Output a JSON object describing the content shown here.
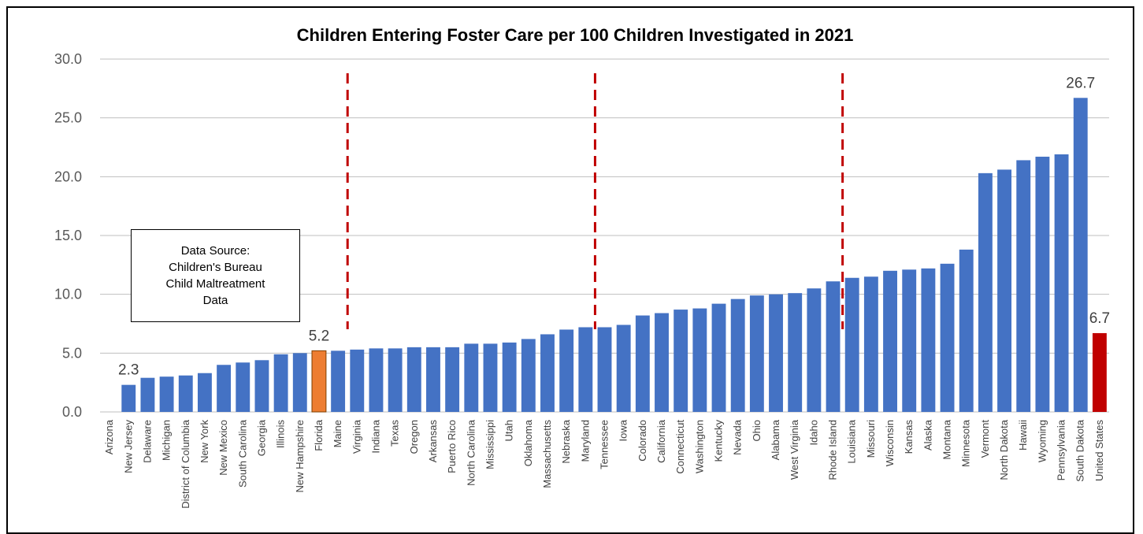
{
  "chart_data": {
    "type": "bar",
    "title": "Children Entering Foster Care per 100 Children Investigated in 2021",
    "xlabel": "",
    "ylabel": "",
    "ylim": [
      0,
      30
    ],
    "yticks": [
      "0.0",
      "5.0",
      "10.0",
      "15.0",
      "20.0",
      "25.0",
      "30.0"
    ],
    "grid": true,
    "categories": [
      "Arizona",
      "New Jersey",
      "Delaware",
      "Michigan",
      "District of Columbia",
      "New York",
      "New Mexico",
      "South Carolina",
      "Georgia",
      "Illinois",
      "New Hampshire",
      "Florida",
      "Maine",
      "Virginia",
      "Indiana",
      "Texas",
      "Oregon",
      "Arkansas",
      "Puerto Rico",
      "North Carolina",
      "Mississippi",
      "Utah",
      "Oklahoma",
      "Massachusetts",
      "Nebraska",
      "Maryland",
      "Tennessee",
      "Iowa",
      "Colorado",
      "California",
      "Connecticut",
      "Washington",
      "Kentucky",
      "Nevada",
      "Ohio",
      "Alabama",
      "West Virginia",
      "Idaho",
      "Rhode Island",
      "Louisiana",
      "Missouri",
      "Wisconsin",
      "Kansas",
      "Alaska",
      "Montana",
      "Minnesota",
      "Vermont",
      "North Dakota",
      "Hawaii",
      "Wyoming",
      "Pennsylvania",
      "South Dakota",
      "United States"
    ],
    "values": [
      0,
      2.3,
      2.9,
      3.0,
      3.1,
      3.3,
      4.0,
      4.2,
      4.4,
      4.9,
      5.0,
      5.2,
      5.2,
      5.3,
      5.4,
      5.4,
      5.5,
      5.5,
      5.5,
      5.8,
      5.8,
      5.9,
      6.2,
      6.6,
      7.0,
      7.2,
      7.2,
      7.4,
      8.2,
      8.4,
      8.7,
      8.8,
      9.2,
      9.6,
      9.9,
      10.0,
      10.1,
      10.5,
      11.1,
      11.4,
      11.5,
      12.0,
      12.1,
      12.2,
      12.6,
      13.8,
      20.3,
      20.6,
      21.4,
      21.7,
      21.9,
      26.7,
      6.7
    ],
    "colors": {
      "default": "#4472C4",
      "highlight": "#ED7D31",
      "total": "#C00000",
      "divider": "#C00000",
      "grid": "#BFBFBF"
    },
    "highlight_category": "Florida",
    "total_category": "United States",
    "data_labels": [
      {
        "category": "New Jersey",
        "text": "2.3"
      },
      {
        "category": "Florida",
        "text": "5.2"
      },
      {
        "category": "South Dakota",
        "text": "26.7"
      },
      {
        "category": "United States",
        "text": "6.7"
      }
    ],
    "dividers_after": [
      "Maine",
      "Maryland",
      "Rhode Island"
    ],
    "annotation": "Data Source: Children's Bureau Child Maltreatment Data"
  }
}
